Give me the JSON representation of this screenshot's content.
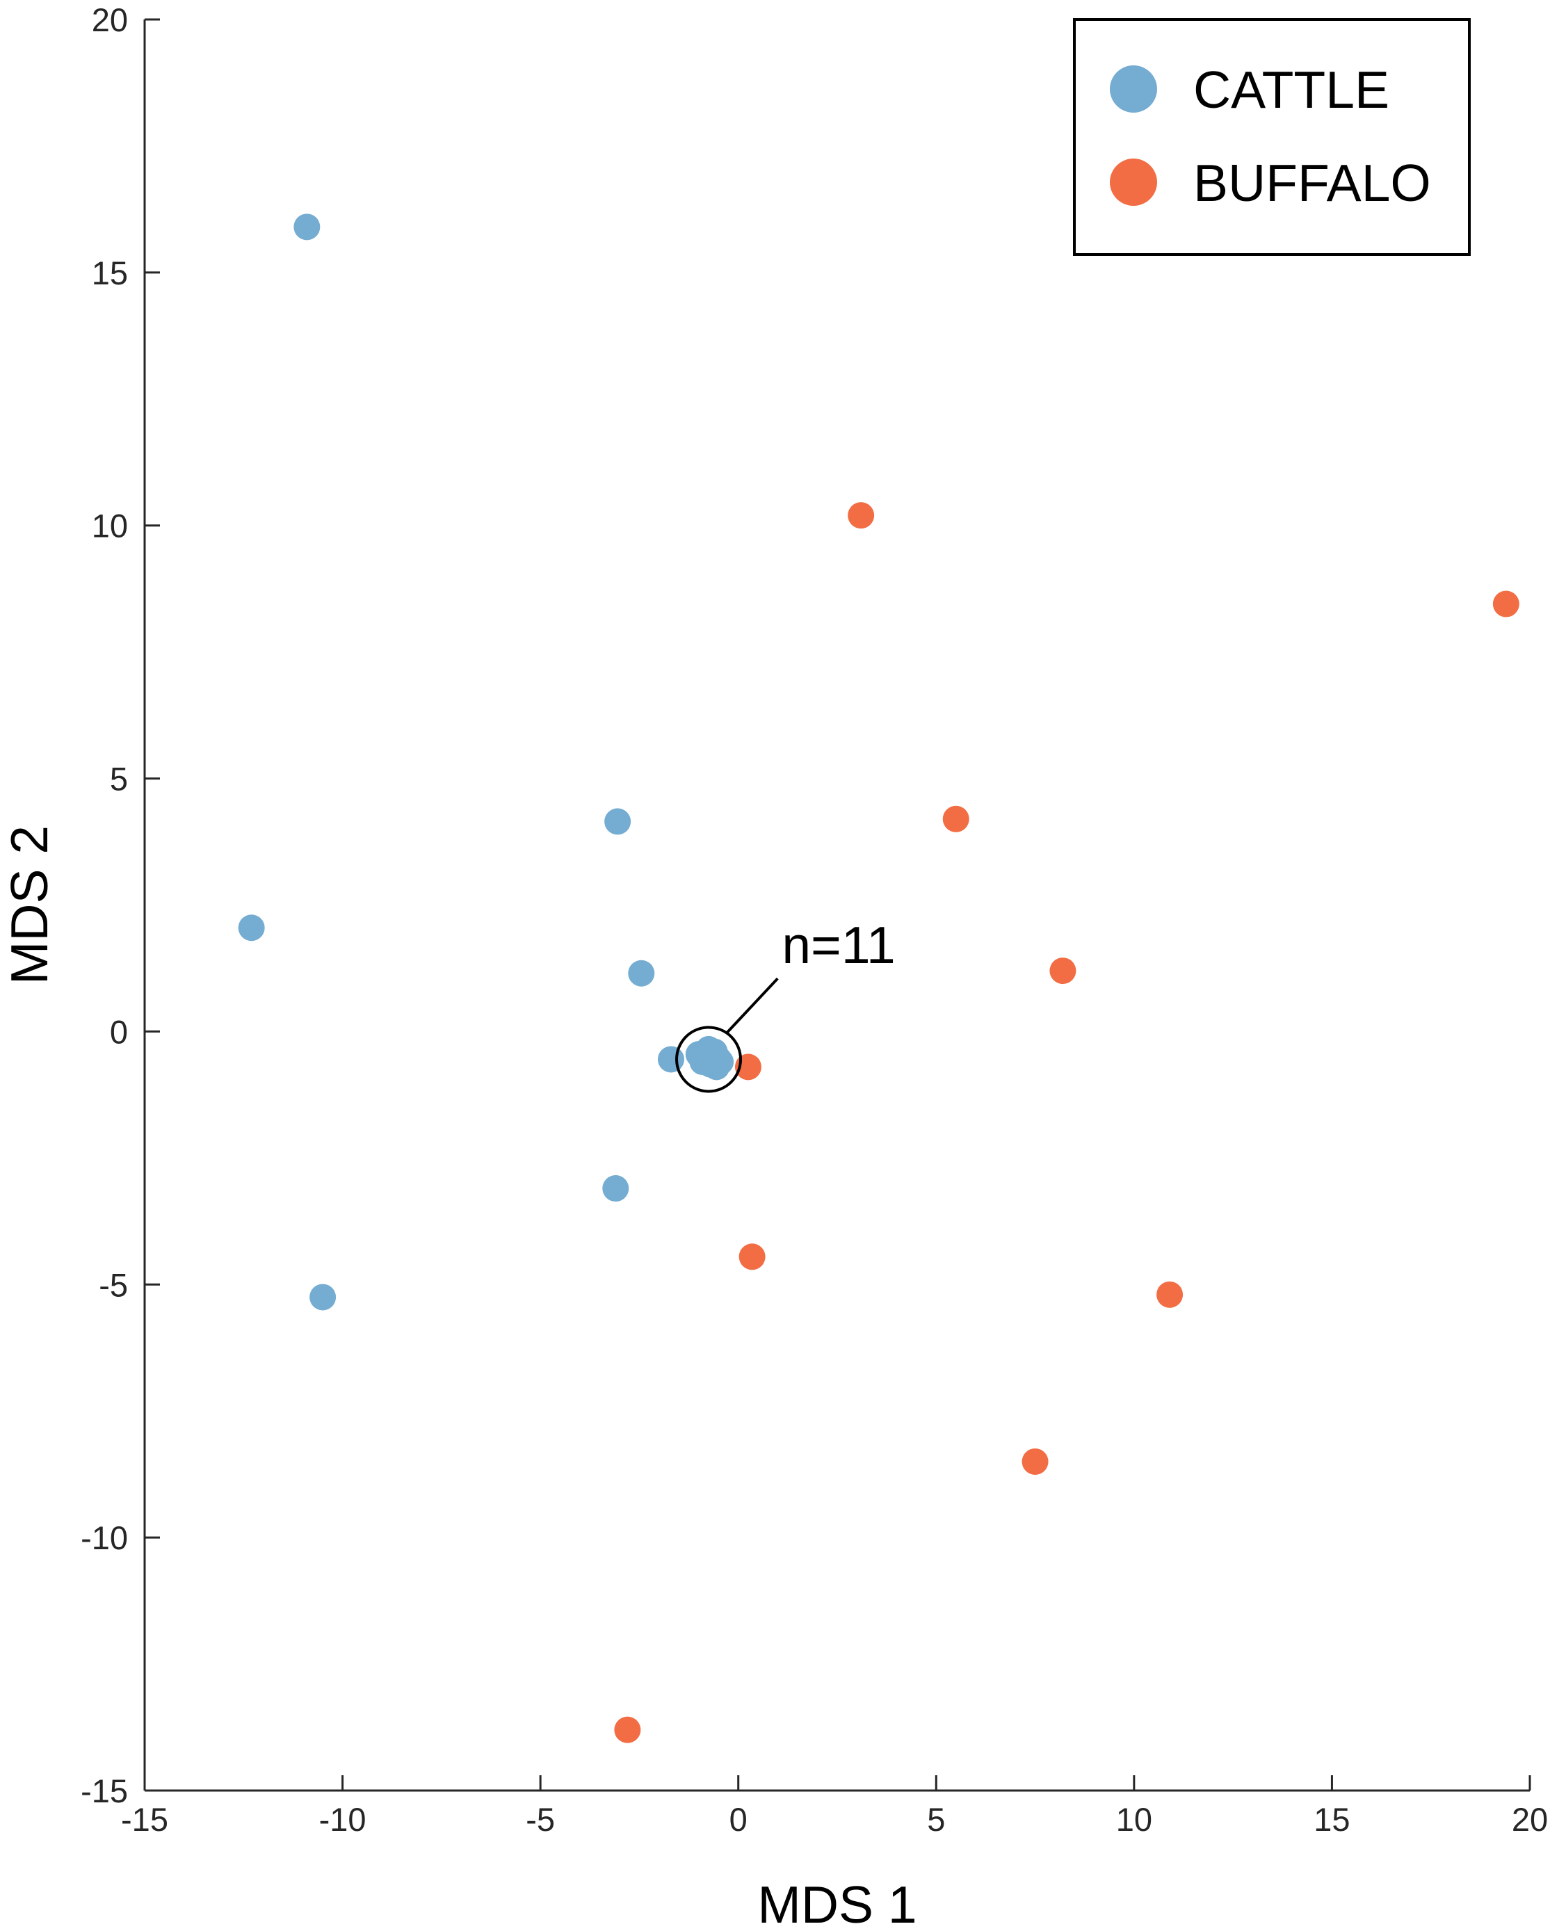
{
  "chart_data": {
    "type": "scatter",
    "xlabel": "MDS 1",
    "ylabel": "MDS 2",
    "xlim": [
      -15,
      20
    ],
    "ylim": [
      -15,
      20
    ],
    "xticks": [
      -15,
      -10,
      -5,
      0,
      5,
      10,
      15,
      20
    ],
    "yticks": [
      -15,
      -10,
      -5,
      0,
      5,
      10,
      15,
      20
    ],
    "xtick_labels": [
      "-15",
      "-10",
      "-5",
      "0",
      "5",
      "10",
      "15",
      "20"
    ],
    "ytick_labels": [
      "-15",
      "-10",
      "-5",
      "0",
      "5",
      "10",
      "15",
      "20"
    ],
    "grid": false,
    "legend_position": "top-right",
    "series": [
      {
        "name": "CATTLE",
        "color": "#74acd2",
        "points": [
          {
            "x": -10.9,
            "y": 15.9
          },
          {
            "x": -12.3,
            "y": 2.05
          },
          {
            "x": -3.05,
            "y": 4.15
          },
          {
            "x": -2.45,
            "y": 1.15
          },
          {
            "x": -1.7,
            "y": -0.55
          },
          {
            "x": -1.0,
            "y": -0.45
          },
          {
            "x": -0.9,
            "y": -0.6
          },
          {
            "x": -0.75,
            "y": -0.35
          },
          {
            "x": -0.65,
            "y": -0.5
          },
          {
            "x": -0.55,
            "y": -0.7
          },
          {
            "x": -0.5,
            "y": -0.55
          },
          {
            "x": -0.8,
            "y": -0.55
          },
          {
            "x": -0.6,
            "y": -0.4
          },
          {
            "x": -0.7,
            "y": -0.65
          },
          {
            "x": -0.85,
            "y": -0.5
          },
          {
            "x": -0.45,
            "y": -0.6
          },
          {
            "x": -3.1,
            "y": -3.1
          },
          {
            "x": -10.5,
            "y": -5.25
          }
        ]
      },
      {
        "name": "BUFFALO",
        "color": "#f26d44",
        "points": [
          {
            "x": 3.1,
            "y": 10.2
          },
          {
            "x": 19.4,
            "y": 8.45
          },
          {
            "x": 5.5,
            "y": 4.2
          },
          {
            "x": 8.2,
            "y": 1.2
          },
          {
            "x": 0.25,
            "y": -0.7
          },
          {
            "x": 0.35,
            "y": -4.45
          },
          {
            "x": 10.9,
            "y": -5.2
          },
          {
            "x": 7.5,
            "y": -8.5
          },
          {
            "x": -2.8,
            "y": -13.8
          }
        ]
      }
    ],
    "annotations": [
      {
        "text": "n=11",
        "target": {
          "x": -0.75,
          "y": -0.55
        },
        "label_at": {
          "x": 1.1,
          "y": 1.35
        }
      }
    ]
  }
}
